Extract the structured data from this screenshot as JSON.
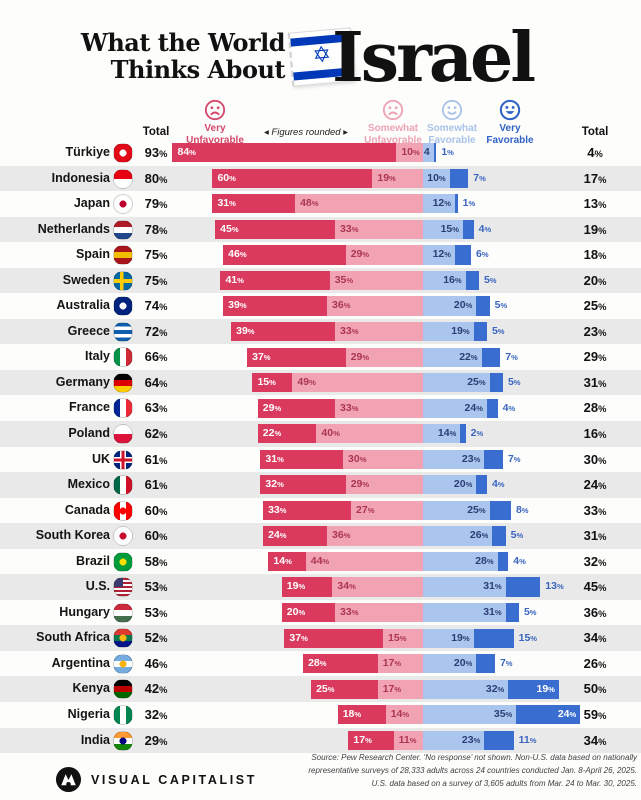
{
  "title": {
    "line1": "What the World",
    "line2": "Thinks About",
    "subject": "Israel",
    "flag_star": "✡",
    "flag_blue": "#0038b8"
  },
  "legend": {
    "total_left": "Total",
    "total_right": "Total",
    "figures_rounded": "◂  Figures rounded  ▸",
    "very_unfavorable": {
      "line1": "Very",
      "line2": "Unfavorable",
      "color": "#d5476b",
      "icon": "frown-face"
    },
    "somewhat_unfavorable": {
      "line1": "Somewhat",
      "line2": "Unfavorable",
      "color": "#eda3b3",
      "icon": "frown-face"
    },
    "somewhat_favorable": {
      "line1": "Somewhat",
      "line2": "Favorable",
      "color": "#a9c2e8",
      "icon": "smile-face"
    },
    "very_favorable": {
      "line1": "Very",
      "line2": "Favorable",
      "color": "#2f62c8",
      "icon": "smile-face-filled"
    }
  },
  "colors": {
    "very_unfavorable": "#da3a5e",
    "somewhat_unfavorable": "#f2a3b3",
    "somewhat_favorable": "#aac5ee",
    "very_favorable": "#3a6dd0",
    "label_on_red": "#ffffff",
    "label_on_pink": "#ab3552",
    "label_on_lightblue": "#2b3f74",
    "label_on_blue": "#ffffff",
    "label_outside_blue": "#3a66c0",
    "row_stripe": "#e9e9e9"
  },
  "chart_data": {
    "type": "bar",
    "subtype": "stacked-horizontal-diverging",
    "title": "What the World Thinks About Israel",
    "note": "Figures rounded",
    "legend_position": "top",
    "categories": [
      "Türkiye",
      "Indonesia",
      "Japan",
      "Netherlands",
      "Spain",
      "Sweden",
      "Australia",
      "Greece",
      "Italy",
      "Germany",
      "France",
      "Poland",
      "UK",
      "Mexico",
      "Canada",
      "South Korea",
      "Brazil",
      "U.S.",
      "Hungary",
      "South Africa",
      "Argentina",
      "Kenya",
      "Nigeria",
      "India"
    ],
    "series": [
      {
        "name": "Very Unfavorable",
        "values": [
          84,
          60,
          31,
          45,
          46,
          41,
          39,
          39,
          37,
          15,
          29,
          22,
          31,
          32,
          33,
          24,
          14,
          19,
          20,
          37,
          28,
          25,
          18,
          17
        ]
      },
      {
        "name": "Somewhat Unfavorable",
        "values": [
          10,
          19,
          48,
          33,
          29,
          35,
          36,
          33,
          29,
          49,
          33,
          40,
          30,
          29,
          27,
          36,
          44,
          34,
          33,
          15,
          17,
          17,
          14,
          11
        ]
      },
      {
        "name": "Somewhat Favorable",
        "values": [
          4,
          10,
          12,
          15,
          12,
          16,
          20,
          19,
          22,
          25,
          24,
          14,
          23,
          20,
          25,
          26,
          28,
          31,
          31,
          19,
          20,
          32,
          35,
          23
        ]
      },
      {
        "name": "Very Favorable",
        "values": [
          1,
          7,
          1,
          4,
          6,
          5,
          5,
          5,
          7,
          5,
          4,
          2,
          7,
          4,
          8,
          5,
          4,
          13,
          5,
          15,
          7,
          19,
          24,
          11
        ]
      }
    ],
    "total_unfavorable": [
      93,
      80,
      79,
      78,
      75,
      75,
      74,
      72,
      66,
      64,
      63,
      62,
      61,
      61,
      60,
      60,
      58,
      53,
      53,
      52,
      46,
      42,
      32,
      29
    ],
    "total_favorable": [
      4,
      17,
      13,
      19,
      18,
      20,
      25,
      23,
      29,
      31,
      28,
      16,
      30,
      24,
      33,
      31,
      32,
      45,
      36,
      34,
      26,
      50,
      59,
      34
    ]
  },
  "rows": [
    {
      "country": "Türkiye",
      "total_left": "93%",
      "values": [
        84,
        10,
        4,
        1
      ],
      "labels": [
        "84%",
        "10%",
        "4",
        "1%"
      ],
      "total_right": "4%",
      "vf_inside": false,
      "flag": {
        "type": "solid",
        "colors": [
          "#e30a17"
        ],
        "dot": "#ffffff"
      }
    },
    {
      "country": "Indonesia",
      "total_left": "80%",
      "values": [
        60,
        19,
        10,
        7
      ],
      "labels": [
        "60%",
        "19%",
        "10%",
        "7%"
      ],
      "total_right": "17%",
      "vf_inside": false,
      "flag": {
        "type": "h",
        "colors": [
          "#e70011",
          "#ffffff"
        ]
      }
    },
    {
      "country": "Japan",
      "total_left": "79%",
      "values": [
        31,
        48,
        12,
        1
      ],
      "labels": [
        "31%",
        "48%",
        "12%",
        "1%"
      ],
      "total_right": "13%",
      "vf_inside": false,
      "flag": {
        "type": "solid",
        "colors": [
          "#ffffff"
        ],
        "dot": "#bc002d"
      }
    },
    {
      "country": "Netherlands",
      "total_left": "78%",
      "values": [
        45,
        33,
        15,
        4
      ],
      "labels": [
        "45%",
        "33%",
        "15%",
        "4%"
      ],
      "total_right": "19%",
      "vf_inside": false,
      "flag": {
        "type": "h",
        "colors": [
          "#ae1c28",
          "#ffffff",
          "#21468b"
        ]
      }
    },
    {
      "country": "Spain",
      "total_left": "75%",
      "values": [
        46,
        29,
        12,
        6
      ],
      "labels": [
        "46%",
        "29%",
        "12%",
        "6%"
      ],
      "total_right": "18%",
      "vf_inside": false,
      "flag": {
        "type": "h",
        "colors": [
          "#aa151b",
          "#f1bf00",
          "#aa151b"
        ]
      }
    },
    {
      "country": "Sweden",
      "total_left": "75%",
      "values": [
        41,
        35,
        16,
        5
      ],
      "labels": [
        "41%",
        "35%",
        "16%",
        "5%"
      ],
      "total_right": "20%",
      "vf_inside": false,
      "flag": {
        "type": "cross",
        "colors": [
          "#006aa7",
          "#fecc00"
        ]
      }
    },
    {
      "country": "Australia",
      "total_left": "74%",
      "values": [
        39,
        36,
        20,
        5
      ],
      "labels": [
        "39%",
        "36%",
        "20%",
        "5%"
      ],
      "total_right": "25%",
      "vf_inside": false,
      "flag": {
        "type": "solid",
        "colors": [
          "#00247d"
        ],
        "dot": "#ffffff"
      }
    },
    {
      "country": "Greece",
      "total_left": "72%",
      "values": [
        39,
        33,
        19,
        5
      ],
      "labels": [
        "39%",
        "33%",
        "19%",
        "5%"
      ],
      "total_right": "23%",
      "vf_inside": false,
      "flag": {
        "type": "h",
        "colors": [
          "#0d5eaf",
          "#ffffff",
          "#0d5eaf",
          "#ffffff",
          "#0d5eaf"
        ]
      }
    },
    {
      "country": "Italy",
      "total_left": "66%",
      "values": [
        37,
        29,
        22,
        7
      ],
      "labels": [
        "37%",
        "29%",
        "22%",
        "7%"
      ],
      "total_right": "29%",
      "vf_inside": false,
      "flag": {
        "type": "v",
        "colors": [
          "#009246",
          "#ffffff",
          "#ce2b37"
        ]
      }
    },
    {
      "country": "Germany",
      "total_left": "64%",
      "values": [
        15,
        49,
        25,
        5
      ],
      "labels": [
        "15%",
        "49%",
        "25%",
        "5%"
      ],
      "total_right": "31%",
      "vf_inside": false,
      "flag": {
        "type": "h",
        "colors": [
          "#000000",
          "#dd0000",
          "#ffce00"
        ]
      }
    },
    {
      "country": "France",
      "total_left": "63%",
      "values": [
        29,
        33,
        24,
        4
      ],
      "labels": [
        "29%",
        "33%",
        "24%",
        "4%"
      ],
      "total_right": "28%",
      "vf_inside": false,
      "flag": {
        "type": "v",
        "colors": [
          "#002395",
          "#ffffff",
          "#ed2939"
        ]
      }
    },
    {
      "country": "Poland",
      "total_left": "62%",
      "values": [
        22,
        40,
        14,
        2
      ],
      "labels": [
        "22%",
        "40%",
        "14%",
        "2%"
      ],
      "total_right": "16%",
      "vf_inside": false,
      "flag": {
        "type": "h",
        "colors": [
          "#ffffff",
          "#dc143c"
        ]
      }
    },
    {
      "country": "UK",
      "total_left": "61%",
      "values": [
        31,
        30,
        23,
        7
      ],
      "labels": [
        "31%",
        "30%",
        "23%",
        "7%"
      ],
      "total_right": "30%",
      "vf_inside": false,
      "flag": {
        "type": "uk",
        "colors": [
          "#00247d",
          "#ffffff",
          "#cf142b"
        ]
      }
    },
    {
      "country": "Mexico",
      "total_left": "61%",
      "values": [
        32,
        29,
        20,
        4
      ],
      "labels": [
        "32%",
        "29%",
        "20%",
        "4%"
      ],
      "total_right": "24%",
      "vf_inside": false,
      "flag": {
        "type": "v",
        "colors": [
          "#006847",
          "#ffffff",
          "#ce1126"
        ]
      }
    },
    {
      "country": "Canada",
      "total_left": "60%",
      "values": [
        33,
        27,
        25,
        8
      ],
      "labels": [
        "33%",
        "27%",
        "25%",
        "8%"
      ],
      "total_right": "33%",
      "vf_inside": false,
      "flag": {
        "type": "v",
        "colors": [
          "#ff0000",
          "#ffffff",
          "#ff0000"
        ],
        "dot": "#ff0000"
      }
    },
    {
      "country": "South Korea",
      "total_left": "60%",
      "values": [
        24,
        36,
        26,
        5
      ],
      "labels": [
        "24%",
        "36%",
        "26%",
        "5%"
      ],
      "total_right": "31%",
      "vf_inside": false,
      "flag": {
        "type": "solid",
        "colors": [
          "#ffffff"
        ],
        "dot": "#c60c30"
      }
    },
    {
      "country": "Brazil",
      "total_left": "58%",
      "values": [
        14,
        44,
        28,
        4
      ],
      "labels": [
        "14%",
        "44%",
        "28%",
        "4%"
      ],
      "total_right": "32%",
      "vf_inside": false,
      "flag": {
        "type": "solid",
        "colors": [
          "#009c3b"
        ],
        "dot": "#ffdf00"
      }
    },
    {
      "country": "U.S.",
      "total_left": "53%",
      "values": [
        19,
        34,
        31,
        13
      ],
      "labels": [
        "19%",
        "34%",
        "31%",
        "13%"
      ],
      "total_right": "45%",
      "vf_inside": false,
      "flag": {
        "type": "us",
        "colors": [
          "#b22234",
          "#ffffff",
          "#3c3b6e"
        ]
      }
    },
    {
      "country": "Hungary",
      "total_left": "53%",
      "values": [
        20,
        33,
        31,
        5
      ],
      "labels": [
        "20%",
        "33%",
        "31%",
        "5%"
      ],
      "total_right": "36%",
      "vf_inside": false,
      "flag": {
        "type": "h",
        "colors": [
          "#cd2a3e",
          "#ffffff",
          "#436f4d"
        ]
      }
    },
    {
      "country": "South Africa",
      "total_left": "52%",
      "values": [
        37,
        15,
        19,
        15
      ],
      "labels": [
        "37%",
        "15%",
        "19%",
        "15%"
      ],
      "total_right": "34%",
      "vf_inside": false,
      "flag": {
        "type": "h",
        "colors": [
          "#de3831",
          "#007a4d",
          "#001489"
        ],
        "dot": "#ffb612"
      }
    },
    {
      "country": "Argentina",
      "total_left": "46%",
      "values": [
        28,
        17,
        20,
        7
      ],
      "labels": [
        "28%",
        "17%",
        "20%",
        "7%"
      ],
      "total_right": "26%",
      "vf_inside": false,
      "flag": {
        "type": "h",
        "colors": [
          "#74acdf",
          "#ffffff",
          "#74acdf"
        ],
        "dot": "#f6b40e"
      }
    },
    {
      "country": "Kenya",
      "total_left": "42%",
      "values": [
        25,
        17,
        32,
        19
      ],
      "labels": [
        "25%",
        "17%",
        "32%",
        "19%"
      ],
      "total_right": "50%",
      "vf_inside": true,
      "flag": {
        "type": "h",
        "colors": [
          "#000000",
          "#bb0000",
          "#006600"
        ]
      }
    },
    {
      "country": "Nigeria",
      "total_left": "32%",
      "values": [
        18,
        14,
        35,
        24
      ],
      "labels": [
        "18%",
        "14%",
        "35%",
        "24%"
      ],
      "total_right": "59%",
      "vf_inside": true,
      "flag": {
        "type": "v",
        "colors": [
          "#008751",
          "#ffffff",
          "#008751"
        ]
      }
    },
    {
      "country": "India",
      "total_left": "29%",
      "values": [
        17,
        11,
        23,
        11
      ],
      "labels": [
        "17%",
        "11%",
        "23%",
        "11%"
      ],
      "total_right": "34%",
      "vf_inside": false,
      "flag": {
        "type": "h",
        "colors": [
          "#ff9933",
          "#ffffff",
          "#138808"
        ],
        "dot": "#000080"
      }
    }
  ],
  "footer": {
    "brand": "VISUAL CAPITALIST",
    "source_lines": [
      "Source: Pew Research Center. ‘No response’ not shown. Non-U.S. data based on nationally",
      "representative surveys of 28,333 adults across 24 countries conducted Jan. 8-April 26, 2025.",
      "U.S. data based on a survey of 3,605 adults from Mar. 24 to Mar. 30, 2025."
    ]
  }
}
